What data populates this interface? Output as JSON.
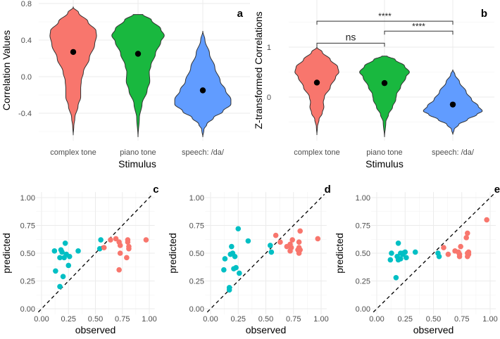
{
  "colors": {
    "complex tone": "#F8766D",
    "piano tone": "#19B83F",
    "speech: /da/": "#619CFF",
    "cyan": "#00BFC4",
    "red": "#F8766D"
  },
  "chart_data": [
    {
      "type": "violin",
      "panel": "a",
      "xlabel": "Stimulus",
      "ylabel": "Correlation Values",
      "categories": [
        "complex tone",
        "piano tone",
        "speech: /da/"
      ],
      "yticks": [
        "0.8",
        "0.4",
        "0.0",
        "-0.4"
      ],
      "ytick_values": [
        0.8,
        0.4,
        0.0,
        -0.4
      ],
      "ylim": [
        -0.7,
        0.82
      ],
      "grid": true,
      "means": [
        0.27,
        0.25,
        -0.15
      ],
      "profiles": [
        [
          [
            0.76,
            0
          ],
          [
            0.7,
            0.2
          ],
          [
            0.6,
            0.55
          ],
          [
            0.5,
            0.85
          ],
          [
            0.45,
            0.87
          ],
          [
            0.35,
            0.8
          ],
          [
            0.2,
            0.6
          ],
          [
            0.05,
            0.38
          ],
          [
            -0.05,
            0.3
          ],
          [
            -0.12,
            0.28
          ],
          [
            -0.22,
            0.28
          ],
          [
            -0.32,
            0.18
          ],
          [
            -0.45,
            0.06
          ],
          [
            -0.55,
            0.02
          ],
          [
            -0.64,
            0
          ]
        ],
        [
          [
            0.68,
            0.18
          ],
          [
            0.62,
            0.5
          ],
          [
            0.52,
            0.85
          ],
          [
            0.45,
            0.98
          ],
          [
            0.38,
            0.85
          ],
          [
            0.25,
            0.65
          ],
          [
            0.12,
            0.48
          ],
          [
            0.05,
            0.42
          ],
          [
            -0.05,
            0.44
          ],
          [
            -0.15,
            0.34
          ],
          [
            -0.3,
            0.15
          ],
          [
            -0.45,
            0.05
          ],
          [
            -0.66,
            0
          ]
        ],
        [
          [
            0.5,
            0
          ],
          [
            0.4,
            0.08
          ],
          [
            0.25,
            0.25
          ],
          [
            0.1,
            0.45
          ],
          [
            -0.05,
            0.65
          ],
          [
            -0.15,
            0.85
          ],
          [
            -0.25,
            1.05
          ],
          [
            -0.3,
            1.05
          ],
          [
            -0.38,
            0.75
          ],
          [
            -0.45,
            0.4
          ],
          [
            -0.52,
            0.15
          ],
          [
            -0.58,
            0.04
          ],
          [
            -0.66,
            0
          ]
        ]
      ]
    },
    {
      "type": "violin",
      "panel": "b",
      "xlabel": "Stimulus",
      "ylabel": "Z-transformed Correlations",
      "categories": [
        "complex tone",
        "piano tone",
        "speech: /da/"
      ],
      "yticks": [
        "1",
        "0"
      ],
      "ytick_values": [
        1,
        0
      ],
      "ylim": [
        -0.8,
        1.9
      ],
      "grid": true,
      "means": [
        0.29,
        0.28,
        -0.15
      ],
      "profiles": [
        [
          [
            1.0,
            0
          ],
          [
            0.9,
            0.2
          ],
          [
            0.75,
            0.5
          ],
          [
            0.6,
            0.78
          ],
          [
            0.5,
            0.82
          ],
          [
            0.4,
            0.7
          ],
          [
            0.2,
            0.5
          ],
          [
            0.0,
            0.28
          ],
          [
            -0.1,
            0.24
          ],
          [
            -0.2,
            0.26
          ],
          [
            -0.32,
            0.2
          ],
          [
            -0.45,
            0.08
          ],
          [
            -0.6,
            0.02
          ],
          [
            -0.76,
            0
          ]
        ],
        [
          [
            0.82,
            0.1
          ],
          [
            0.75,
            0.4
          ],
          [
            0.62,
            0.75
          ],
          [
            0.5,
            0.93
          ],
          [
            0.4,
            0.8
          ],
          [
            0.2,
            0.6
          ],
          [
            0.05,
            0.45
          ],
          [
            -0.05,
            0.42
          ],
          [
            -0.2,
            0.3
          ],
          [
            -0.35,
            0.15
          ],
          [
            -0.5,
            0.05
          ],
          [
            -0.8,
            0
          ]
        ],
        [
          [
            0.55,
            0
          ],
          [
            0.45,
            0.08
          ],
          [
            0.3,
            0.25
          ],
          [
            0.1,
            0.5
          ],
          [
            -0.05,
            0.7
          ],
          [
            -0.18,
            0.95
          ],
          [
            -0.28,
            1.1
          ],
          [
            -0.35,
            0.9
          ],
          [
            -0.45,
            0.55
          ],
          [
            -0.55,
            0.22
          ],
          [
            -0.65,
            0.05
          ],
          [
            -0.75,
            0
          ]
        ]
      ],
      "brackets": [
        {
          "from": 0,
          "to": 1,
          "y": 1.08,
          "label": "ns"
        },
        {
          "from": 1,
          "to": 2,
          "y": 1.32,
          "label": "****"
        },
        {
          "from": 0,
          "to": 2,
          "y": 1.52,
          "label": "****"
        }
      ]
    },
    {
      "type": "scatter",
      "panel": "c",
      "xlabel": "observed",
      "ylabel": "predicted",
      "xlim": [
        0,
        1
      ],
      "ylim": [
        0,
        1
      ],
      "ticks": [
        "0.00",
        "0.25",
        "0.50",
        "0.75",
        "1.00"
      ],
      "reference_line": "y = x (dashed)",
      "grid": true,
      "series": [
        {
          "color": "cyan",
          "points": [
            [
              0.12,
              0.52
            ],
            [
              0.13,
              0.34
            ],
            [
              0.17,
              0.2
            ],
            [
              0.18,
              0.53
            ],
            [
              0.19,
              0.51
            ],
            [
              0.17,
              0.46
            ],
            [
              0.2,
              0.29
            ],
            [
              0.21,
              0.46
            ],
            [
              0.22,
              0.59
            ],
            [
              0.23,
              0.49
            ],
            [
              0.25,
              0.39
            ],
            [
              0.26,
              0.47
            ],
            [
              0.34,
              0.52
            ],
            [
              0.54,
              0.54
            ],
            [
              0.55,
              0.62
            ]
          ]
        },
        {
          "color": "red",
          "points": [
            [
              0.58,
              0.55
            ],
            [
              0.64,
              0.62
            ],
            [
              0.69,
              0.63
            ],
            [
              0.72,
              0.6
            ],
            [
              0.73,
              0.57
            ],
            [
              0.73,
              0.5
            ],
            [
              0.72,
              0.35
            ],
            [
              0.79,
              0.46
            ],
            [
              0.8,
              0.6
            ],
            [
              0.8,
              0.62
            ],
            [
              0.81,
              0.56
            ],
            [
              0.81,
              0.54
            ],
            [
              0.97,
              0.62
            ]
          ]
        }
      ]
    },
    {
      "type": "scatter",
      "panel": "d",
      "xlabel": "observed",
      "ylabel": "predicted",
      "xlim": [
        0,
        1
      ],
      "ylim": [
        0,
        1
      ],
      "ticks": [
        "0.00",
        "0.25",
        "0.50",
        "0.75",
        "1.00"
      ],
      "reference_line": "y = x (dashed)",
      "grid": true,
      "series": [
        {
          "color": "cyan",
          "points": [
            [
              0.12,
              0.35
            ],
            [
              0.13,
              0.45
            ],
            [
              0.17,
              0.19
            ],
            [
              0.17,
              0.17
            ],
            [
              0.18,
              0.49
            ],
            [
              0.19,
              0.56
            ],
            [
              0.2,
              0.5
            ],
            [
              0.21,
              0.36
            ],
            [
              0.22,
              0.47
            ],
            [
              0.23,
              0.37
            ],
            [
              0.25,
              0.72
            ],
            [
              0.26,
              0.32
            ],
            [
              0.34,
              0.61
            ],
            [
              0.54,
              0.57
            ],
            [
              0.55,
              0.51
            ]
          ]
        },
        {
          "color": "red",
          "points": [
            [
              0.59,
              0.66
            ],
            [
              0.63,
              0.6
            ],
            [
              0.69,
              0.56
            ],
            [
              0.72,
              0.58
            ],
            [
              0.72,
              0.52
            ],
            [
              0.73,
              0.55
            ],
            [
              0.74,
              0.62
            ],
            [
              0.79,
              0.53
            ],
            [
              0.8,
              0.5
            ],
            [
              0.8,
              0.55
            ],
            [
              0.8,
              0.6
            ],
            [
              0.81,
              0.7
            ],
            [
              0.81,
              0.53
            ],
            [
              0.97,
              0.63
            ]
          ]
        }
      ]
    },
    {
      "type": "scatter",
      "panel": "e",
      "xlabel": "observed",
      "ylabel": "predicted",
      "xlim": [
        0,
        1
      ],
      "ylim": [
        0,
        1
      ],
      "ticks": [
        "0.00",
        "0.25",
        "0.50",
        "0.75",
        "1.00"
      ],
      "reference_line": "y = x (dashed)",
      "grid": true,
      "series": [
        {
          "color": "cyan",
          "points": [
            [
              0.12,
              0.44
            ],
            [
              0.13,
              0.5
            ],
            [
              0.17,
              0.28
            ],
            [
              0.18,
              0.47
            ],
            [
              0.19,
              0.59
            ],
            [
              0.19,
              0.44
            ],
            [
              0.21,
              0.45
            ],
            [
              0.21,
              0.5
            ],
            [
              0.23,
              0.5
            ],
            [
              0.23,
              0.49
            ],
            [
              0.25,
              0.51
            ],
            [
              0.26,
              0.46
            ],
            [
              0.34,
              0.51
            ],
            [
              0.54,
              0.5
            ],
            [
              0.55,
              0.47
            ]
          ]
        },
        {
          "color": "red",
          "points": [
            [
              0.59,
              0.55
            ],
            [
              0.63,
              0.49
            ],
            [
              0.69,
              0.52
            ],
            [
              0.72,
              0.51
            ],
            [
              0.73,
              0.47
            ],
            [
              0.74,
              0.56
            ],
            [
              0.73,
              0.49
            ],
            [
              0.79,
              0.64
            ],
            [
              0.8,
              0.68
            ],
            [
              0.8,
              0.5
            ],
            [
              0.8,
              0.47
            ],
            [
              0.81,
              0.49
            ],
            [
              0.81,
              0.51
            ],
            [
              0.97,
              0.8
            ]
          ]
        }
      ]
    }
  ]
}
